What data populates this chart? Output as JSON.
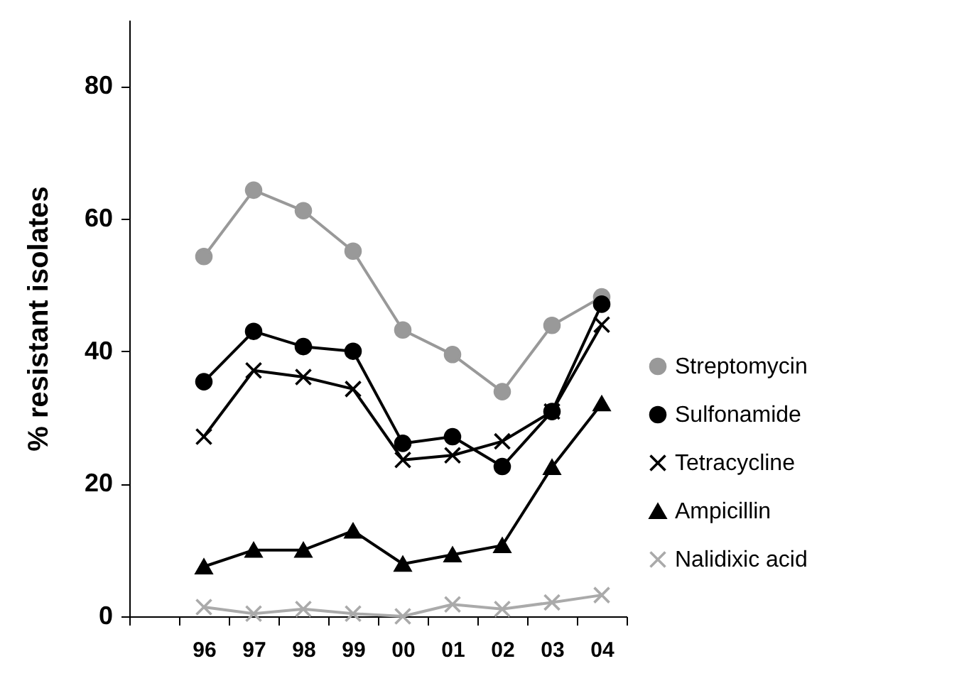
{
  "chart_data": {
    "type": "line",
    "ylabel": "% resistant isolates",
    "categories": [
      null,
      "96",
      "97",
      "98",
      "99",
      "00",
      "01",
      "02",
      "03",
      "04"
    ],
    "ylim": [
      0,
      90
    ],
    "yticks": [
      0,
      20,
      40,
      60,
      80
    ],
    "grid": false,
    "legend": "right",
    "series": [
      {
        "name": "Streptomycin",
        "color": "#999999",
        "marker": "circle",
        "values": [
          null,
          54.3,
          64.3,
          61.2,
          55.1,
          43.2,
          39.5,
          33.9,
          43.9,
          48.2
        ]
      },
      {
        "name": "Sulfonamide",
        "color": "#000000",
        "marker": "circle",
        "values": [
          null,
          35.4,
          43,
          40.7,
          40,
          26.1,
          27.1,
          22.6,
          30.9,
          47.1
        ]
      },
      {
        "name": "Tetracycline",
        "color": "#000000",
        "marker": "cross",
        "values": [
          null,
          27.1,
          37.1,
          36.1,
          34.3,
          23.6,
          24.3,
          26.4,
          30.9,
          44
        ]
      },
      {
        "name": "Ampicillin",
        "color": "#000000",
        "marker": "triangle",
        "values": [
          null,
          7.5,
          10,
          10,
          12.9,
          7.9,
          9.3,
          10.7,
          22.5,
          32.1
        ]
      },
      {
        "name": "Nalidixic acid",
        "color": "#aaaaaa",
        "marker": "cross",
        "values": [
          null,
          1.4,
          0.4,
          1.1,
          0.4,
          0,
          1.8,
          1.1,
          2.1,
          3.2
        ]
      }
    ]
  }
}
